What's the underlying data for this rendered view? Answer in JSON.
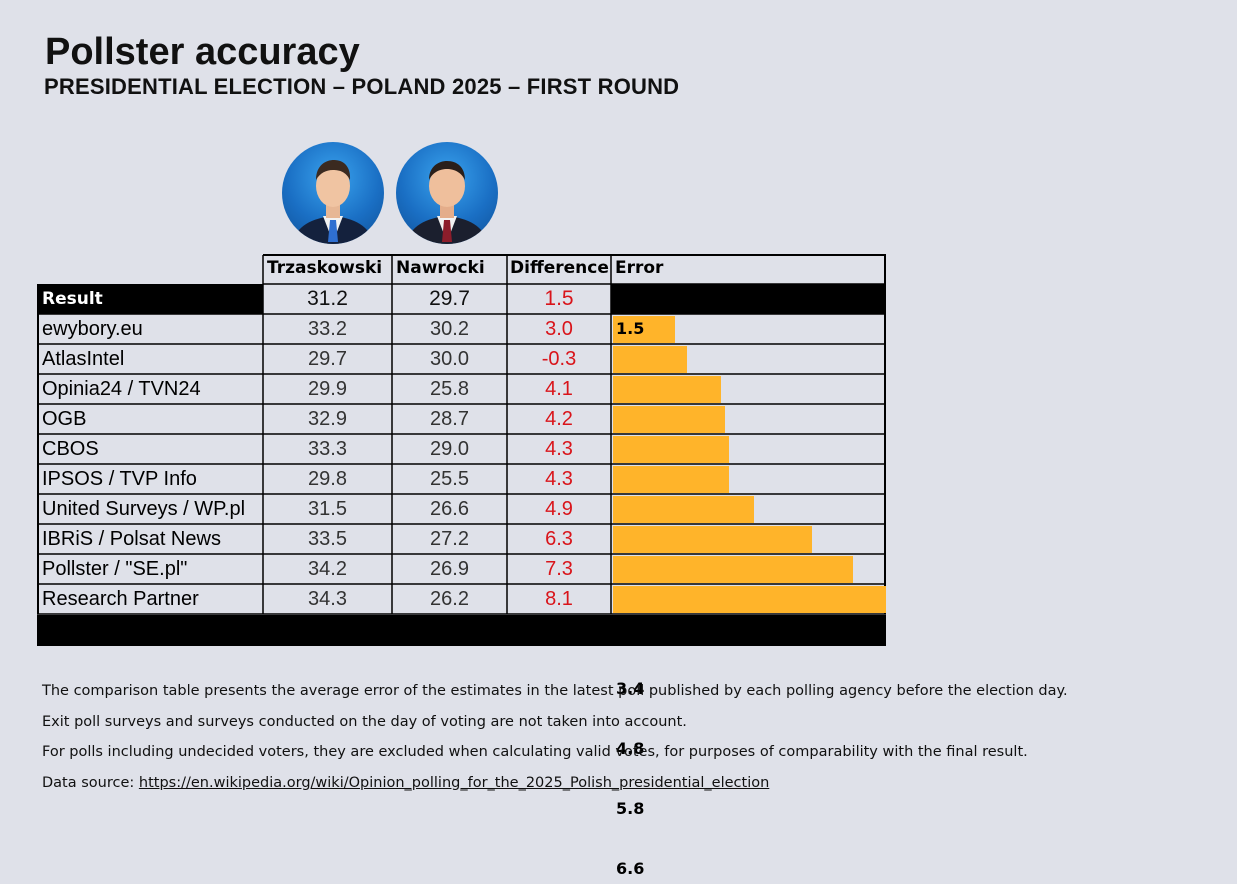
{
  "title": "Pollster accuracy",
  "subtitle": "PRESIDENTIAL ELECTION – POLAND 2025 – FIRST ROUND",
  "candidates": [
    {
      "name": "Trzaskowski",
      "tie_color": "#2f6fd1"
    },
    {
      "name": "Nawrocki",
      "tie_color": "#8c1d2b"
    }
  ],
  "chart_data": {
    "type": "table",
    "columns": [
      "",
      "Trzaskowski",
      "Nawrocki",
      "Difference",
      "Error"
    ],
    "result": {
      "label": "Result",
      "trzaskowski": "31.2",
      "nawrocki": "29.7",
      "difference": "1.5"
    },
    "rows": [
      {
        "pollster": "ewybory.eu",
        "trzaskowski": "33.2",
        "nawrocki": "30.2",
        "difference": "3.0",
        "error": "1.5"
      },
      {
        "pollster": "AtlasIntel",
        "trzaskowski": "29.7",
        "nawrocki": "30.0",
        "difference": "-0.3",
        "error": "1.8"
      },
      {
        "pollster": "Opinia24 / TVN24",
        "trzaskowski": "29.9",
        "nawrocki": "25.8",
        "difference": "4.1",
        "error": "2.6"
      },
      {
        "pollster": "OGB",
        "trzaskowski": "32.9",
        "nawrocki": "28.7",
        "difference": "4.2",
        "error": "2.7"
      },
      {
        "pollster": "CBOS",
        "trzaskowski": "33.3",
        "nawrocki": "29.0",
        "difference": "4.3",
        "error": "2.8"
      },
      {
        "pollster": "IPSOS / TVP Info",
        "trzaskowski": "29.8",
        "nawrocki": "25.5",
        "difference": "4.3",
        "error": "2.8"
      },
      {
        "pollster": "United Surveys / WP.pl",
        "trzaskowski": "31.5",
        "nawrocki": "26.6",
        "difference": "4.9",
        "error": "3.4"
      },
      {
        "pollster": "IBRiS / Polsat News",
        "trzaskowski": "33.5",
        "nawrocki": "27.2",
        "difference": "6.3",
        "error": "4.8"
      },
      {
        "pollster": "Pollster / \"SE.pl\"",
        "trzaskowski": "34.2",
        "nawrocki": "26.9",
        "difference": "7.3",
        "error": "5.8"
      },
      {
        "pollster": "Research Partner",
        "trzaskowski": "34.3",
        "nawrocki": "26.2",
        "difference": "8.1",
        "error": "6.6"
      }
    ],
    "error_bar_max": 6.6,
    "colors": {
      "error_bar": "#ffb42a",
      "difference_text": "#d9141a",
      "result_row_bg": "#000000",
      "background": "#dfe1e9"
    }
  },
  "notes": [
    "The comparison table presents the average error of the estimates in the latest poll published by each polling agency before the election day.",
    "Exit poll surveys and surveys conducted on the day of voting are not taken into account.",
    "For polls including undecided voters, they are excluded when calculating valid votes, for purposes of comparability with the final result."
  ],
  "source": {
    "label": "Data source: ",
    "link_text": "https://en.wikipedia.org/wiki/Opinion_polling_for_the_2025_Polish_presidential_election"
  }
}
